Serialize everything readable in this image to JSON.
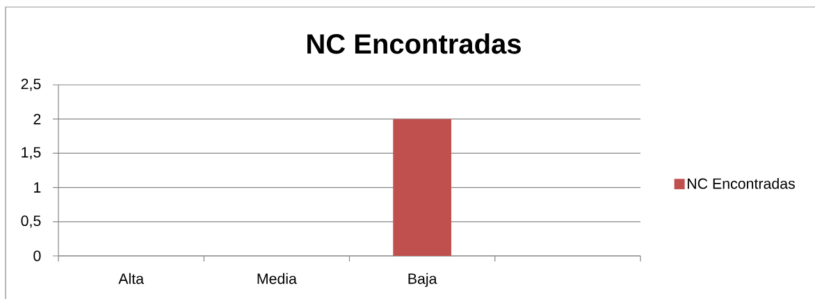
{
  "chart_data": {
    "type": "bar",
    "title": "NC Encontradas",
    "categories": [
      "Alta",
      "Media",
      "Baja",
      null
    ],
    "series": [
      {
        "name": "NC Encontradas",
        "color": "#c0504d",
        "values": [
          0,
          0,
          2,
          null
        ]
      }
    ],
    "ylim": [
      0,
      2.5
    ],
    "yticks": [
      0,
      {
        "value": 0.5,
        "label": "0,5"
      },
      1,
      {
        "value": 1.5,
        "label": "1,5"
      },
      2,
      {
        "value": 2.5,
        "label": "2,5"
      }
    ],
    "grid": "y",
    "legend": "right"
  }
}
